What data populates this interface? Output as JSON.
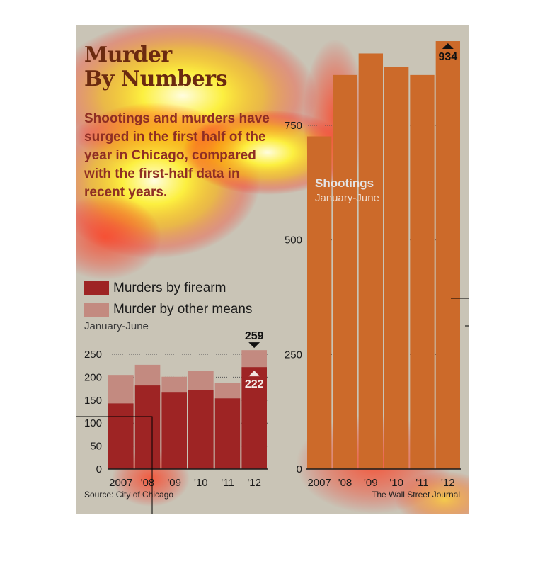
{
  "title_line1": "Murder",
  "title_line2": "By Numbers",
  "subtitle": "Shootings and murders have surged in the first half of the year in Chicago, compared with the first-half data in recent years.",
  "legend": [
    {
      "label": "Murders by firearm",
      "color": "#9e2424"
    },
    {
      "label": "Murder by other means",
      "color": "#c38a80"
    }
  ],
  "source": "Source: City of Chicago",
  "credit": "The Wall Street Journal",
  "chart_data": [
    {
      "type": "bar",
      "stacked": true,
      "period_label": "January-June",
      "categories": [
        "2007",
        "'08",
        "'09",
        "'10",
        "'11",
        "'12"
      ],
      "series": [
        {
          "name": "Murders by firearm",
          "values": [
            143,
            182,
            168,
            172,
            154,
            222
          ],
          "color": "#9e2424"
        },
        {
          "name": "Murder by other means",
          "values": [
            62,
            45,
            33,
            42,
            34,
            37
          ],
          "color": "#c38a80"
        }
      ],
      "totals": [
        205,
        227,
        201,
        214,
        188,
        259
      ],
      "annotations": [
        {
          "category": "'12",
          "value": 259,
          "label": "259",
          "marker": "down-triangle"
        },
        {
          "category": "'12",
          "value": 222,
          "label": "222",
          "marker": "up-triangle"
        }
      ],
      "yticks": [
        0,
        50,
        100,
        150,
        200,
        250
      ],
      "ylim": [
        0,
        270
      ]
    },
    {
      "type": "bar",
      "label": "Shootings",
      "period_label": "January-June",
      "categories": [
        "2007",
        "'08",
        "'09",
        "'10",
        "'11",
        "'12"
      ],
      "values": [
        726,
        860,
        907,
        877,
        860,
        934
      ],
      "color": "#cc6a2a",
      "annotations": [
        {
          "category": "'12",
          "value": 934,
          "label": "934",
          "marker": "up-triangle"
        }
      ],
      "yticks": [
        0,
        250,
        500,
        750
      ],
      "ylim": [
        0,
        960
      ]
    }
  ]
}
